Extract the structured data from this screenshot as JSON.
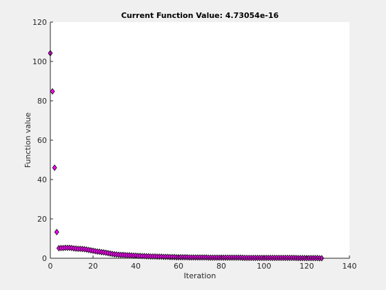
{
  "chart_data": {
    "type": "scatter",
    "title": "Current Function Value: 4.73054e-16",
    "xlabel": "Iteration",
    "ylabel": "Function value",
    "xlim": [
      0,
      140
    ],
    "ylim": [
      0,
      120
    ],
    "xticks": [
      0,
      20,
      40,
      60,
      80,
      100,
      120,
      140
    ],
    "yticks": [
      0,
      20,
      40,
      60,
      80,
      100,
      120
    ],
    "grid": false,
    "marker": "diamond",
    "marker_face_color": "#ff00ff",
    "marker_edge_color": "#000000",
    "series": [
      {
        "x": [
          0,
          1,
          2,
          3,
          4,
          5,
          6,
          7,
          8,
          9,
          10,
          11,
          12,
          13,
          14,
          15,
          16,
          17,
          18,
          19,
          20,
          21,
          22,
          23,
          24,
          25,
          26,
          27,
          28,
          29,
          30,
          31,
          32,
          33,
          34,
          35,
          36,
          37,
          38,
          39,
          40,
          41,
          42,
          43,
          44,
          45,
          46,
          47,
          48,
          49,
          50,
          51,
          52,
          53,
          54,
          55,
          56,
          57,
          58,
          59,
          60,
          61,
          62,
          63,
          64,
          65,
          66,
          67,
          68,
          69,
          70,
          71,
          72,
          73,
          74,
          75,
          76,
          77,
          78,
          79,
          80,
          81,
          82,
          83,
          84,
          85,
          86,
          87,
          88,
          89,
          90,
          91,
          92,
          93,
          94,
          95,
          96,
          97,
          98,
          99,
          100,
          101,
          102,
          103,
          104,
          105,
          106,
          107,
          108,
          109,
          110,
          111,
          112,
          113,
          114,
          115,
          116,
          117,
          118,
          119,
          120,
          121,
          122,
          123,
          124,
          125,
          126,
          127
        ],
        "y": [
          104.2,
          84.8,
          46.0,
          13.3,
          5.1,
          5.2,
          5.2,
          5.3,
          5.3,
          5.3,
          5.2,
          5.0,
          4.9,
          4.8,
          4.8,
          4.7,
          4.6,
          4.4,
          4.2,
          4.0,
          3.8,
          3.6,
          3.4,
          3.3,
          3.1,
          3.0,
          2.8,
          2.6,
          2.4,
          2.2,
          2.0,
          1.9,
          1.8,
          1.7,
          1.7,
          1.6,
          1.5,
          1.5,
          1.4,
          1.3,
          1.3,
          1.2,
          1.2,
          1.1,
          1.1,
          1.0,
          1.0,
          0.9,
          0.9,
          0.9,
          0.8,
          0.8,
          0.8,
          0.7,
          0.7,
          0.7,
          0.6,
          0.6,
          0.6,
          0.5,
          0.5,
          0.5,
          0.5,
          0.5,
          0.5,
          0.4,
          0.4,
          0.4,
          0.4,
          0.4,
          0.4,
          0.4,
          0.4,
          0.4,
          0.3,
          0.3,
          0.3,
          0.3,
          0.3,
          0.3,
          0.3,
          0.3,
          0.3,
          0.3,
          0.3,
          0.3,
          0.3,
          0.3,
          0.3,
          0.3,
          0.25,
          0.2,
          0.2,
          0.2,
          0.2,
          0.2,
          0.2,
          0.2,
          0.2,
          0.2,
          0.2,
          0.2,
          0.2,
          0.2,
          0.2,
          0.2,
          0.2,
          0.2,
          0.2,
          0.2,
          0.2,
          0.2,
          0.2,
          0.2,
          0.2,
          0.15,
          0.1,
          0.1,
          0.1,
          0.1,
          0.1,
          0.1,
          0.1,
          0.1,
          0.1,
          0.1,
          0.0,
          0.0
        ]
      }
    ]
  }
}
